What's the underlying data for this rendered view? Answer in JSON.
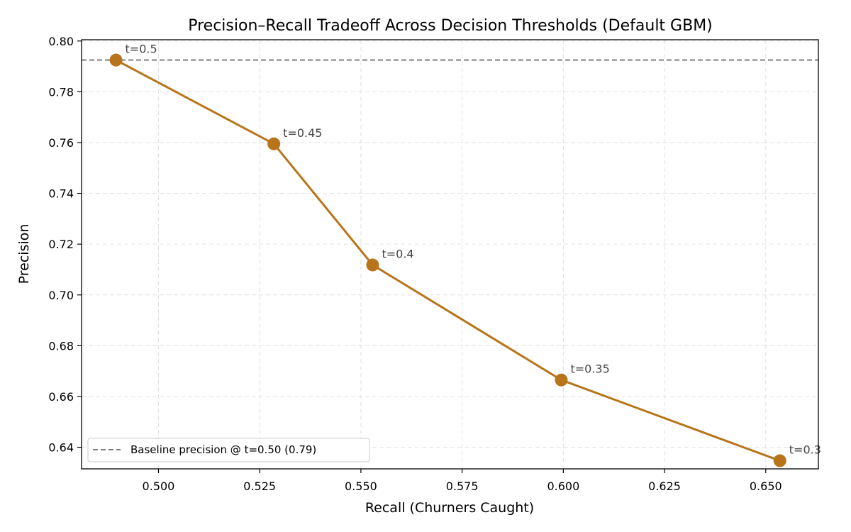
{
  "chart_data": {
    "type": "line",
    "title": "Precision–Recall Tradeoff Across Decision Thresholds (Default GBM)",
    "xlabel": "Recall (Churners Caught)",
    "ylabel": "Precision",
    "xlim": [
      0.481,
      0.663
    ],
    "ylim": [
      0.6315,
      0.8005
    ],
    "xticks": [
      0.5,
      0.525,
      0.55,
      0.575,
      0.6,
      0.625,
      0.65
    ],
    "xtick_labels": [
      "0.500",
      "0.525",
      "0.550",
      "0.575",
      "0.600",
      "0.625",
      "0.650"
    ],
    "yticks": [
      0.64,
      0.66,
      0.68,
      0.7,
      0.72,
      0.74,
      0.76,
      0.78,
      0.8
    ],
    "ytick_labels": [
      "0.64",
      "0.66",
      "0.68",
      "0.70",
      "0.72",
      "0.74",
      "0.76",
      "0.78",
      "0.80"
    ],
    "grid": true,
    "series": [
      {
        "color": "#b8741a",
        "points": [
          {
            "x": 0.4895,
            "y": 0.7925,
            "label": "t=0.5"
          },
          {
            "x": 0.5285,
            "y": 0.7595,
            "label": "t=0.45"
          },
          {
            "x": 0.5529,
            "y": 0.7118,
            "label": "t=0.4"
          },
          {
            "x": 0.5995,
            "y": 0.6665,
            "label": "t=0.35"
          },
          {
            "x": 0.6535,
            "y": 0.6347,
            "label": "t=0.3"
          }
        ]
      }
    ],
    "reference_line": {
      "orientation": "horizontal",
      "y": 0.7925,
      "style": "dashed",
      "color": "#808080",
      "legend_label": "Baseline precision @ t=0.50 (0.79)"
    },
    "legend": {
      "placement": "lower-left"
    }
  }
}
